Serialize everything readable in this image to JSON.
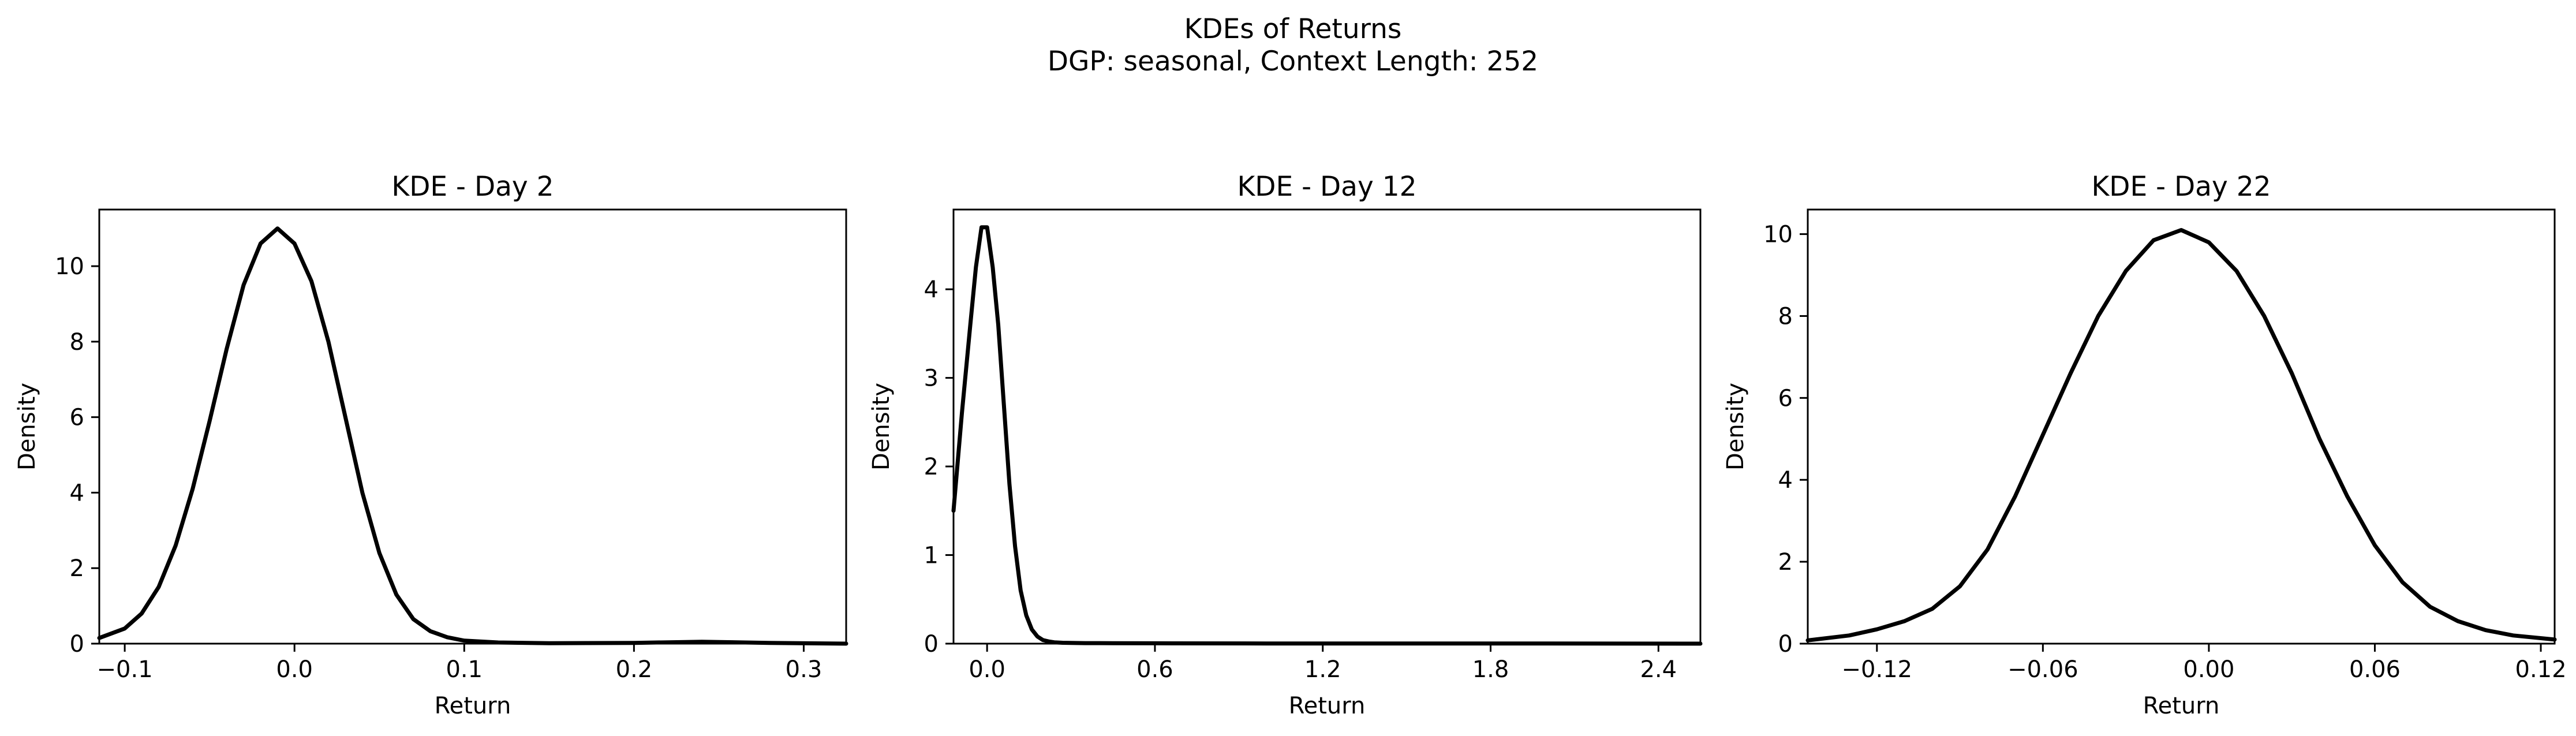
{
  "figure": {
    "title_line1": "KDEs of Returns",
    "title_line2": "DGP: seasonal, Context Length: 252"
  },
  "chart_data": [
    {
      "type": "line",
      "title": "KDE - Day 2",
      "xlabel": "Return",
      "ylabel": "Density",
      "xlim": [
        -0.115,
        0.325
      ],
      "ylim": [
        0,
        11.5
      ],
      "xticks": [
        -0.1,
        0.0,
        0.1,
        0.2,
        0.3
      ],
      "xtick_labels": [
        "−0.1",
        "0.0",
        "0.1",
        "0.2",
        "0.3"
      ],
      "yticks": [
        0,
        2,
        4,
        6,
        8,
        10
      ],
      "ytick_labels": [
        "0",
        "2",
        "4",
        "6",
        "8",
        "10"
      ],
      "grid": false,
      "series": [
        {
          "color": "#000000",
          "x": [
            -0.115,
            -0.1,
            -0.09,
            -0.08,
            -0.07,
            -0.06,
            -0.05,
            -0.04,
            -0.03,
            -0.02,
            -0.01,
            0.0,
            0.01,
            0.02,
            0.03,
            0.04,
            0.05,
            0.06,
            0.07,
            0.08,
            0.09,
            0.1,
            0.12,
            0.15,
            0.2,
            0.24,
            0.28,
            0.325
          ],
          "y": [
            0.15,
            0.4,
            0.8,
            1.5,
            2.6,
            4.1,
            5.9,
            7.8,
            9.5,
            10.6,
            11.0,
            10.6,
            9.6,
            8.0,
            6.0,
            4.0,
            2.4,
            1.3,
            0.65,
            0.33,
            0.17,
            0.08,
            0.03,
            0.01,
            0.02,
            0.05,
            0.02,
            0.0
          ]
        }
      ]
    },
    {
      "type": "line",
      "title": "KDE - Day 12",
      "xlabel": "Return",
      "ylabel": "Density",
      "xlim": [
        -0.12,
        2.55
      ],
      "ylim": [
        0,
        4.9
      ],
      "xticks": [
        0.0,
        0.6,
        1.2,
        1.8,
        2.4
      ],
      "xtick_labels": [
        "0.0",
        "0.6",
        "1.2",
        "1.8",
        "2.4"
      ],
      "yticks": [
        0,
        1,
        2,
        3,
        4
      ],
      "ytick_labels": [
        "0",
        "1",
        "2",
        "3",
        "4"
      ],
      "grid": false,
      "series": [
        {
          "color": "#000000",
          "x": [
            -0.12,
            -0.09,
            -0.06,
            -0.04,
            -0.02,
            0.0,
            0.02,
            0.04,
            0.06,
            0.08,
            0.1,
            0.12,
            0.14,
            0.16,
            0.18,
            0.2,
            0.22,
            0.24,
            0.27,
            0.3,
            0.35,
            0.45,
            0.6,
            1.0,
            1.5,
            2.0,
            2.55
          ],
          "y": [
            1.5,
            2.6,
            3.6,
            4.25,
            4.7,
            4.7,
            4.25,
            3.6,
            2.7,
            1.8,
            1.1,
            0.6,
            0.32,
            0.16,
            0.08,
            0.04,
            0.025,
            0.015,
            0.01,
            0.008,
            0.006,
            0.005,
            0.004,
            0.002,
            0.001,
            0.001,
            0.0
          ]
        }
      ]
    },
    {
      "type": "line",
      "title": "KDE - Day 22",
      "xlabel": "Return",
      "ylabel": "Density",
      "xlim": [
        -0.145,
        0.125
      ],
      "ylim": [
        0,
        10.6
      ],
      "xticks": [
        -0.12,
        -0.06,
        0.0,
        0.06,
        0.12
      ],
      "xtick_labels": [
        "−0.12",
        "−0.06",
        "0.00",
        "0.06",
        "0.12"
      ],
      "yticks": [
        0,
        2,
        4,
        6,
        8,
        10
      ],
      "ytick_labels": [
        "0",
        "2",
        "4",
        "6",
        "8",
        "10"
      ],
      "grid": false,
      "series": [
        {
          "color": "#000000",
          "x": [
            -0.145,
            -0.13,
            -0.12,
            -0.11,
            -0.1,
            -0.09,
            -0.08,
            -0.07,
            -0.06,
            -0.05,
            -0.04,
            -0.03,
            -0.02,
            -0.01,
            0.0,
            0.01,
            0.02,
            0.03,
            0.04,
            0.05,
            0.06,
            0.07,
            0.08,
            0.09,
            0.1,
            0.11,
            0.125
          ],
          "y": [
            0.08,
            0.2,
            0.35,
            0.55,
            0.85,
            1.4,
            2.3,
            3.6,
            5.1,
            6.6,
            8.0,
            9.1,
            9.85,
            10.1,
            9.8,
            9.1,
            8.0,
            6.6,
            5.0,
            3.6,
            2.4,
            1.5,
            0.9,
            0.55,
            0.33,
            0.2,
            0.1
          ]
        }
      ]
    }
  ]
}
